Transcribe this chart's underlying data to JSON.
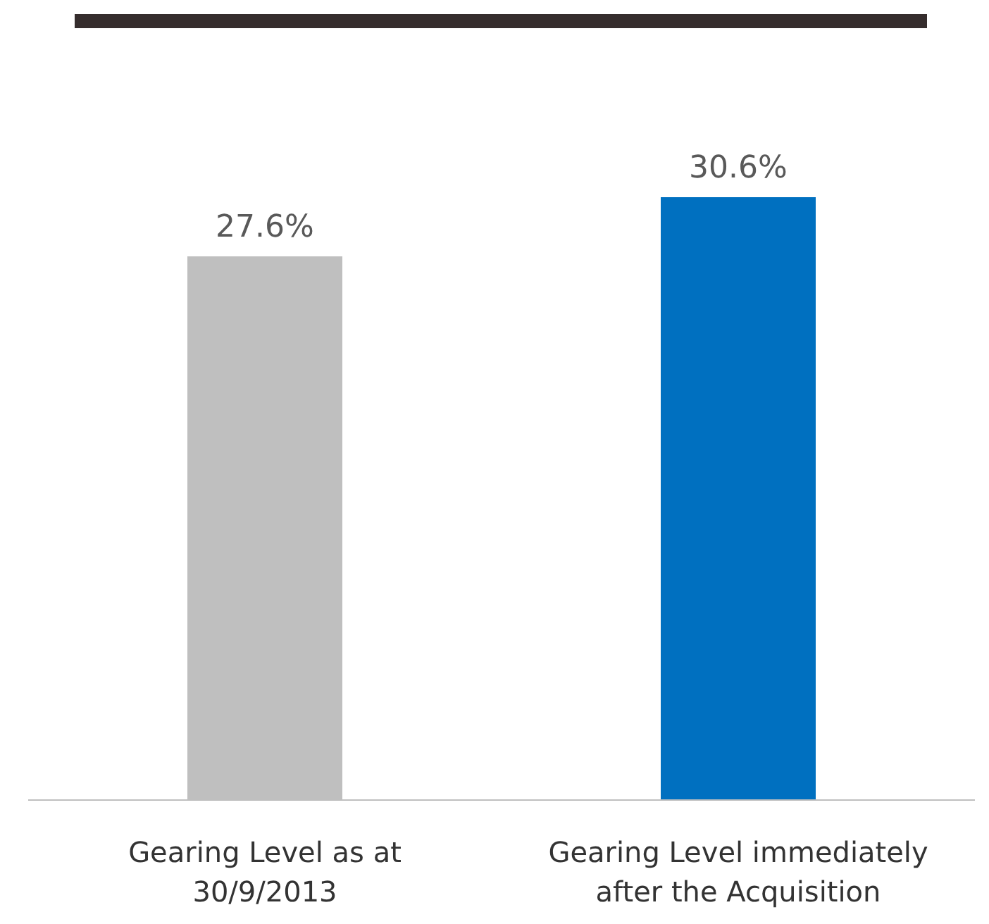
{
  "chart_data": {
    "type": "bar",
    "categories": [
      "Gearing Level as at 30/9/2013",
      "Gearing Level immediately after the Acquisition"
    ],
    "values": [
      27.6,
      30.6
    ],
    "colors": [
      "#bfbfbf",
      "#0070c0"
    ],
    "value_labels": [
      "27.6%",
      "30.6%"
    ]
  }
}
